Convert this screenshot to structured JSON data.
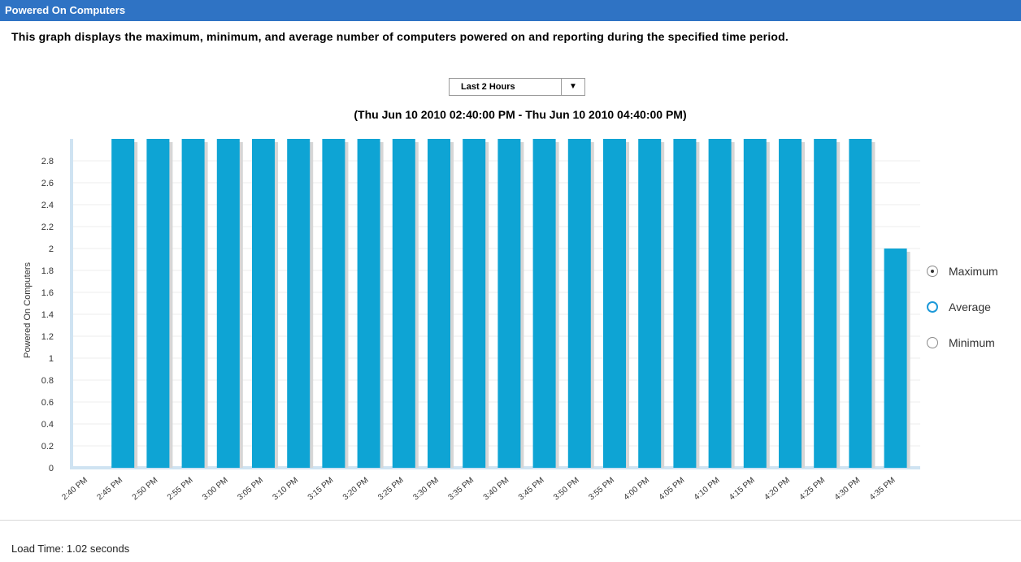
{
  "header": {
    "title": "Powered On Computers"
  },
  "description": "This graph displays the maximum, minimum, and average number of computers powered on and reporting during the specified time period.",
  "range_select": {
    "selected": "Last 2 Hours",
    "arrow_icon": "dropdown-arrow-icon"
  },
  "range_text": "(Thu Jun 10 2010 02:40:00 PM - Thu Jun 10 2010 04:40:00 PM)",
  "legend": {
    "selected": "Maximum",
    "items": [
      {
        "label": "Maximum",
        "state": "checked"
      },
      {
        "label": "Average",
        "state": "unchecked",
        "color": "#1b98d8"
      },
      {
        "label": "Minimum",
        "state": "unchecked"
      }
    ]
  },
  "footer": {
    "load_time": "Load Time: 1.02 seconds"
  },
  "chart_data": {
    "type": "bar",
    "ylabel": "Powered On Computers",
    "ylim": [
      0,
      3
    ],
    "yticks": [
      "0",
      "0.2",
      "0.4",
      "0.6",
      "0.8",
      "1",
      "1.2",
      "1.4",
      "1.6",
      "1.8",
      "2",
      "2.2",
      "2.4",
      "2.6",
      "2.8"
    ],
    "grid": true,
    "bar_color": "#0ea4d4",
    "categories": [
      "2:40 PM",
      "2:45 PM",
      "2:50 PM",
      "2:55 PM",
      "3:00 PM",
      "3:05 PM",
      "3:10 PM",
      "3:15 PM",
      "3:20 PM",
      "3:25 PM",
      "3:30 PM",
      "3:35 PM",
      "3:40 PM",
      "3:45 PM",
      "3:50 PM",
      "3:55 PM",
      "4:00 PM",
      "4:05 PM",
      "4:10 PM",
      "4:15 PM",
      "4:20 PM",
      "4:25 PM",
      "4:30 PM",
      "4:35 PM"
    ],
    "values": [
      0,
      3,
      3,
      3,
      3,
      3,
      3,
      3,
      3,
      3,
      3,
      3,
      3,
      3,
      3,
      3,
      3,
      3,
      3,
      3,
      3,
      3,
      3,
      2
    ]
  }
}
